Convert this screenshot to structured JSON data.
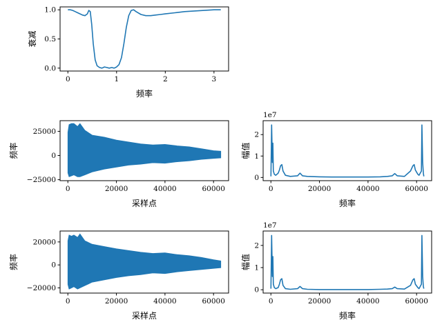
{
  "chart_data": [
    {
      "id": "filter-response",
      "type": "line",
      "xlabel": "频率",
      "ylabel": "衰减",
      "xlim": [
        -0.16,
        3.3
      ],
      "ylim": [
        -0.05,
        1.05
      ],
      "xticks": [
        0,
        1,
        2,
        3
      ],
      "yticks": [
        0.0,
        0.5,
        1.0
      ],
      "ytick_labels": [
        "0.0",
        "0.5",
        "1.0"
      ],
      "color": "#1f77b4",
      "x": [
        0,
        0.05,
        0.1,
        0.15,
        0.2,
        0.25,
        0.3,
        0.35,
        0.4,
        0.43,
        0.46,
        0.49,
        0.52,
        0.56,
        0.6,
        0.65,
        0.7,
        0.75,
        0.8,
        0.85,
        0.9,
        0.95,
        1.0,
        1.05,
        1.1,
        1.15,
        1.2,
        1.25,
        1.3,
        1.35,
        1.4,
        1.5,
        1.6,
        1.7,
        1.8,
        1.9,
        2.0,
        2.2,
        2.4,
        2.6,
        2.8,
        3.0,
        3.14
      ],
      "y": [
        1.0,
        1.0,
        0.99,
        0.97,
        0.95,
        0.93,
        0.91,
        0.9,
        0.93,
        0.99,
        0.97,
        0.75,
        0.42,
        0.14,
        0.04,
        0.01,
        0.0,
        0.02,
        0.01,
        0.0,
        0.01,
        0.0,
        0.02,
        0.06,
        0.18,
        0.42,
        0.7,
        0.9,
        0.99,
        1.0,
        0.97,
        0.92,
        0.9,
        0.9,
        0.91,
        0.92,
        0.93,
        0.95,
        0.97,
        0.98,
        0.99,
        1.0,
        1.0
      ]
    },
    {
      "id": "original-signal",
      "type": "area",
      "xlabel": "采样点",
      "ylabel": "频率",
      "xlim": [
        -3200,
        66200
      ],
      "ylim": [
        -26000,
        36000
      ],
      "xticks": [
        0,
        20000,
        40000,
        60000
      ],
      "yticks": [
        -25000,
        0,
        25000
      ],
      "color": "#1f77b4",
      "x": [
        0,
        500,
        1500,
        2500,
        4000,
        5000,
        7000,
        10000,
        15000,
        20000,
        25000,
        30000,
        35000,
        40000,
        45000,
        50000,
        55000,
        60000,
        63000
      ],
      "upper": [
        24000,
        32000,
        33000,
        33000,
        30000,
        33000,
        26000,
        21000,
        19000,
        16000,
        14000,
        12000,
        11000,
        11500,
        10000,
        9000,
        7000,
        5000,
        4500
      ],
      "lower": [
        -18000,
        -22000,
        -21000,
        -20000,
        -22000,
        -22000,
        -20000,
        -17000,
        -14000,
        -12000,
        -10000,
        -9000,
        -7500,
        -8000,
        -6500,
        -5500,
        -4000,
        -3000,
        -2500
      ]
    },
    {
      "id": "original-spectrum",
      "type": "line",
      "xlabel": "频率",
      "ylabel": "幅值",
      "offset_text": "1e7",
      "xlim": [
        -3200,
        66200
      ],
      "ylim": [
        -0.15,
        2.65
      ],
      "xticks": [
        0,
        20000,
        40000,
        60000
      ],
      "yticks": [
        0,
        1,
        2
      ],
      "color": "#1f77b4",
      "x": [
        0,
        300,
        600,
        800,
        1000,
        1400,
        2000,
        3000,
        3500,
        4000,
        4500,
        5000,
        6000,
        8000,
        11000,
        12000,
        13000,
        15000,
        20000,
        25000,
        30000,
        35000,
        40000,
        45000,
        48000,
        50000,
        51000,
        52000,
        55000,
        57500,
        58500,
        59000,
        59500,
        60500,
        61000,
        62000,
        62200,
        62500,
        62800,
        63000
      ],
      "y": [
        0.05,
        2.45,
        0.7,
        1.6,
        0.3,
        0.15,
        0.1,
        0.2,
        0.35,
        0.55,
        0.6,
        0.3,
        0.1,
        0.05,
        0.08,
        0.2,
        0.08,
        0.05,
        0.03,
        0.02,
        0.02,
        0.02,
        0.02,
        0.03,
        0.05,
        0.08,
        0.18,
        0.08,
        0.05,
        0.3,
        0.55,
        0.6,
        0.35,
        0.15,
        0.1,
        0.3,
        2.45,
        0.7,
        0.2,
        0.05
      ]
    },
    {
      "id": "filtered-signal",
      "type": "area",
      "xlabel": "采样点",
      "ylabel": "频率",
      "xlim": [
        -3200,
        66200
      ],
      "ylim": [
        -24500,
        29500
      ],
      "xticks": [
        0,
        20000,
        40000,
        60000
      ],
      "yticks": [
        -20000,
        0,
        20000
      ],
      "color": "#1f77b4",
      "x": [
        0,
        500,
        1500,
        2500,
        4000,
        5000,
        7000,
        10000,
        15000,
        20000,
        25000,
        30000,
        35000,
        40000,
        45000,
        50000,
        55000,
        60000,
        63000
      ],
      "upper": [
        21000,
        26000,
        25000,
        26000,
        24000,
        27000,
        21000,
        18000,
        16000,
        14000,
        12500,
        11000,
        10000,
        10500,
        9000,
        8000,
        6500,
        4500,
        3500
      ],
      "lower": [
        -17000,
        -21000,
        -20000,
        -19000,
        -21000,
        -20000,
        -18000,
        -15000,
        -13000,
        -11000,
        -9500,
        -8500,
        -7000,
        -7500,
        -6000,
        -5000,
        -4000,
        -3000,
        -2500
      ]
    },
    {
      "id": "filtered-spectrum",
      "type": "line",
      "xlabel": "频率",
      "ylabel": "幅值",
      "offset_text": "1e7",
      "xlim": [
        -3200,
        66200
      ],
      "ylim": [
        -0.15,
        2.65
      ],
      "xticks": [
        0,
        20000,
        40000,
        60000
      ],
      "yticks": [
        0,
        1,
        2
      ],
      "color": "#1f77b4",
      "x": [
        0,
        300,
        600,
        800,
        1000,
        1400,
        2000,
        3000,
        3500,
        4000,
        4500,
        5000,
        6000,
        8000,
        11000,
        12000,
        13000,
        15000,
        20000,
        25000,
        30000,
        35000,
        40000,
        45000,
        48000,
        50000,
        51000,
        52000,
        55000,
        57500,
        58500,
        59000,
        59500,
        60500,
        61000,
        62000,
        62200,
        62500,
        62800,
        63000
      ],
      "y": [
        0.05,
        2.45,
        0.6,
        1.5,
        0.25,
        0.1,
        0.05,
        0.1,
        0.25,
        0.45,
        0.5,
        0.2,
        0.05,
        0.02,
        0.05,
        0.15,
        0.05,
        0.02,
        0.01,
        0.01,
        0.01,
        0.01,
        0.01,
        0.02,
        0.03,
        0.05,
        0.12,
        0.05,
        0.03,
        0.2,
        0.45,
        0.5,
        0.25,
        0.1,
        0.05,
        0.25,
        2.45,
        0.6,
        0.15,
        0.05
      ]
    }
  ]
}
